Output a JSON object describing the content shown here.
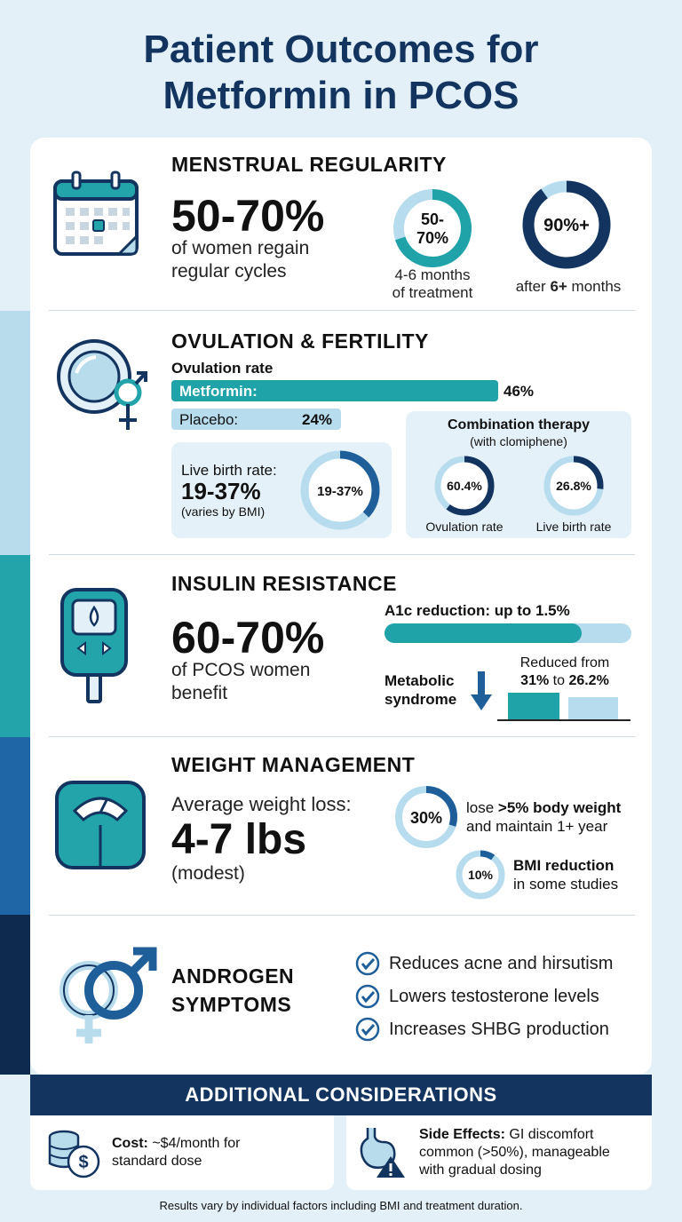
{
  "title_line1": "Patient Outcomes for",
  "title_line2": "Metformin in PCOS",
  "menstrual": {
    "heading": "MENSTRUAL REGULARITY",
    "big": "50-70%",
    "desc1": "of women regain",
    "desc2": "regular cycles",
    "ring1_label_a": "50-",
    "ring1_label_b": "70%",
    "ring1_fraction": 0.7,
    "ring1_cap1": "4-6 months",
    "ring1_cap2": "of treatment",
    "ring2_label": "90%+",
    "ring2_fraction": 0.9,
    "ring2_cap_pre": "after ",
    "ring2_cap_bold": "6+",
    "ring2_cap_post": " months",
    "icon": "calendar-icon"
  },
  "ovulation": {
    "heading": "OVULATION & FERTILITY",
    "rate_label": "Ovulation rate",
    "metformin_label": "Metformin:",
    "metformin_value": "46%",
    "metformin_fraction": 0.46,
    "placebo_label": "Placebo:",
    "placebo_value": "24%",
    "placebo_fraction": 0.24,
    "live_birth_label": "Live birth rate:",
    "live_birth_big": "19-37%",
    "live_birth_note": "(varies by BMI)",
    "live_birth_ring": "19-37%",
    "live_birth_fraction": 0.37,
    "combo_title": "Combination therapy",
    "combo_sub": "(with clomiphene)",
    "combo_ring1": "60.4%",
    "combo_ring1_fraction": 0.604,
    "combo_ring1_cap": "Ovulation rate",
    "combo_ring2": "26.8%",
    "combo_ring2_fraction": 0.268,
    "combo_ring2_cap": "Live birth rate",
    "icon": "female-male-symbol-icon"
  },
  "insulin": {
    "heading": "INSULIN RESISTANCE",
    "big": "60-70%",
    "desc1": "of PCOS women",
    "desc2": "benefit",
    "a1c_label": "A1c reduction: up to 1.5%",
    "a1c_fraction": 0.8,
    "metabolic1": "Metabolic",
    "metabolic2": "syndrome",
    "reduced1": "Reduced from",
    "reduced2_a": "31%",
    "reduced2_b": " to ",
    "reduced2_c": "26.2%",
    "before_value": 31,
    "after_value": 26.2,
    "icon": "glucose-meter-icon"
  },
  "weight": {
    "heading": "WEIGHT MANAGEMENT",
    "lead": "Average weight loss:",
    "big": "4-7 lbs",
    "note": "(modest)",
    "ring1": "30%",
    "ring1_fraction": 0.3,
    "ring1_text_a_pre": "lose ",
    "ring1_text_a_bold": ">5% body weight",
    "ring1_text_b": "and maintain 1+ year",
    "ring2": "10%",
    "ring2_fraction": 0.1,
    "ring2_text_a": "BMI reduction",
    "ring2_text_b": "in some studies",
    "icon": "scale-icon"
  },
  "androgen": {
    "heading1": "ANDROGEN",
    "heading2": "SYMPTOMS",
    "items": [
      "Reduces acne and hirsutism",
      "Lowers testosterone levels",
      "Increases SHBG production"
    ],
    "icon": "gender-symbols-icon"
  },
  "additional": {
    "heading": "ADDITIONAL CONSIDERATIONS",
    "cost_label": "Cost:",
    "cost_text1": " ~$4/month for",
    "cost_text2": "standard dose",
    "side_label": "Side Effects:",
    "side_text1": " GI discomfort",
    "side_text2": "common (>50%), manageable",
    "side_text3": "with gradual dosing"
  },
  "footer": "Results vary by individual factors including BMI and treatment duration.",
  "colors": {
    "teal": "#1fa3a8",
    "navy": "#12345e",
    "blue": "#1f5f99",
    "light": "#b6dcee"
  }
}
